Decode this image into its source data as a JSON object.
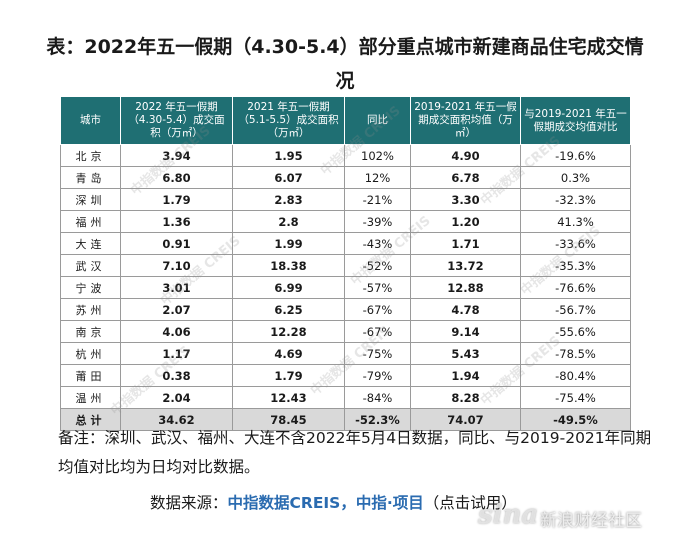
{
  "title": "表：2022年五一假期（4.30-5.4）部分重点城市新建商品住宅成交情况",
  "headers": {
    "city": "城市",
    "area2022": "2022 年五一假期（4.30-5.4）成交面积（万㎡）",
    "area2021": "2021 年五一假期（5.1-5.5）成交面积（万㎡）",
    "yoy": "同比",
    "avg": "2019-2021 年五一假期成交面积均值（万㎡）",
    "vsavg": "与2019-2021 年五一假期成交均值对比"
  },
  "rows": [
    {
      "city": "北京",
      "a2022": "3.94",
      "a2021": "1.95",
      "yoy": "102%",
      "avg": "4.90",
      "vs": "-19.6%"
    },
    {
      "city": "青岛",
      "a2022": "6.80",
      "a2021": "6.07",
      "yoy": "12%",
      "avg": "6.78",
      "vs": "0.3%"
    },
    {
      "city": "深圳",
      "a2022": "1.79",
      "a2021": "2.83",
      "yoy": "-21%",
      "avg": "3.30",
      "vs": "-32.3%"
    },
    {
      "city": "福州",
      "a2022": "1.36",
      "a2021": "2.8",
      "yoy": "-39%",
      "avg": "1.20",
      "vs": "41.3%"
    },
    {
      "city": "大连",
      "a2022": "0.91",
      "a2021": "1.99",
      "yoy": "-43%",
      "avg": "1.71",
      "vs": "-33.6%"
    },
    {
      "city": "武汉",
      "a2022": "7.10",
      "a2021": "18.38",
      "yoy": "-52%",
      "avg": "13.72",
      "vs": "-35.3%"
    },
    {
      "city": "宁波",
      "a2022": "3.01",
      "a2021": "6.99",
      "yoy": "-57%",
      "avg": "12.88",
      "vs": "-76.6%"
    },
    {
      "city": "苏州",
      "a2022": "2.07",
      "a2021": "6.25",
      "yoy": "-67%",
      "avg": "4.78",
      "vs": "-56.7%"
    },
    {
      "city": "南京",
      "a2022": "4.06",
      "a2021": "12.28",
      "yoy": "-67%",
      "avg": "9.14",
      "vs": "-55.6%"
    },
    {
      "city": "杭州",
      "a2022": "1.17",
      "a2021": "4.69",
      "yoy": "-75%",
      "avg": "5.43",
      "vs": "-78.5%"
    },
    {
      "city": "莆田",
      "a2022": "0.38",
      "a2021": "1.79",
      "yoy": "-79%",
      "avg": "1.94",
      "vs": "-80.4%"
    },
    {
      "city": "温州",
      "a2022": "2.04",
      "a2021": "12.43",
      "yoy": "-84%",
      "avg": "8.28",
      "vs": "-75.4%"
    }
  ],
  "total": {
    "city": "总计",
    "a2022": "34.62",
    "a2021": "78.45",
    "yoy": "-52.3%",
    "avg": "74.07",
    "vs": "-49.5%"
  },
  "note": "备注：深圳、武汉、福州、大连不含2022年5月4日数据，同比、与2019-2021年同期均值对比均为日均对比数据。",
  "source": {
    "prefix": "数据来源：",
    "link": "中指数据CREIS，中指·项目",
    "suffix": "（点击试用）"
  },
  "watermark": "中指数据 CREIS",
  "sina": {
    "logo": "sina",
    "text": "新浪财经社区"
  }
}
